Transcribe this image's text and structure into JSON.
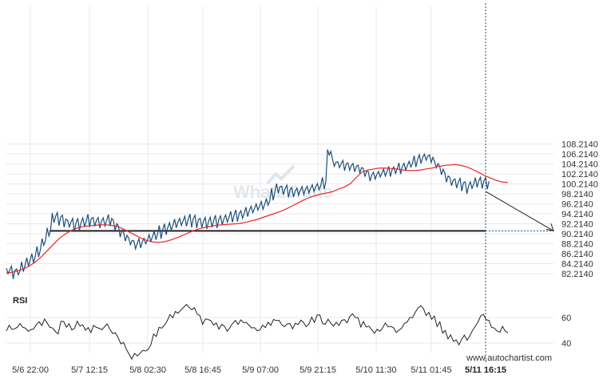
{
  "chart_data": [
    {
      "type": "line",
      "panel": "price",
      "y_ticks": [
        "108.2140",
        "106.2140",
        "104.2140",
        "102.2140",
        "100.2140",
        "98.2140",
        "96.2140",
        "94.2140",
        "92.2140",
        "90.2140",
        "88.2140",
        "86.2140",
        "84.2140",
        "82.2140"
      ],
      "ylim": [
        81.2,
        108.5
      ],
      "x_ticks": [
        "5/6 22:00",
        "5/7 12:15",
        "5/8 02:30",
        "5/8 16:45",
        "5/9 07:00",
        "5/9 21:15",
        "5/10 11:30",
        "5/11 01:45",
        "5/11 16:15"
      ],
      "series": [
        {
          "type": "price",
          "values": [
            82.7,
            82.3,
            82.5,
            83.5,
            84.5,
            85.2,
            86.5,
            88.5,
            90.5,
            93.3,
            93.0,
            92.6,
            92.2,
            91.8,
            92.0,
            92.4,
            92.7,
            92.5,
            92.3,
            92.5,
            92.8,
            91.8,
            90.5,
            89.5,
            88.6,
            87.9,
            88.2,
            88.7,
            89.3,
            89.8,
            90.4,
            91.0,
            91.6,
            92.2,
            92.5,
            92.6,
            92.7,
            92.5,
            92.3,
            92.2,
            92.4,
            92.5,
            92.8,
            93.2,
            93.5,
            93.7,
            94.0,
            94.5,
            95.0,
            95.5,
            95.8,
            96.5,
            98.0,
            99.2,
            98.8,
            98.6,
            98.4,
            98.6,
            98.8,
            99.0,
            99.3,
            99.6,
            100.2,
            106.5,
            104.3,
            104.0,
            103.8,
            103.6,
            103.4,
            103.1,
            102.4,
            101.6,
            101.8,
            102.1,
            102.4,
            102.6,
            102.9,
            103.2,
            103.6,
            104.1,
            104.6,
            105.1,
            105.5,
            105.2,
            104.0,
            102.8,
            101.4,
            100.6,
            100.2,
            99.9,
            99.3,
            99.9,
            100.4,
            100.3,
            100.2
          ]
        },
        {
          "type": "moving-average",
          "color": "#e8262b",
          "values": [
            82.3,
            82.5,
            82.8,
            83.2,
            83.8,
            84.6,
            85.6,
            86.8,
            88.0,
            89.2,
            90.1,
            90.8,
            91.3,
            91.6,
            91.8,
            91.9,
            92.0,
            92.0,
            91.9,
            91.7,
            91.2,
            90.6,
            90.0,
            89.4,
            88.9,
            88.6,
            88.5,
            88.6,
            88.9,
            89.3,
            89.8,
            90.3,
            90.8,
            91.2,
            91.5,
            91.7,
            91.9,
            92.0,
            92.1,
            92.2,
            92.3,
            92.5,
            92.8,
            93.1,
            93.5,
            93.9,
            94.3,
            94.7,
            95.2,
            95.8,
            96.4,
            97.0,
            97.5,
            97.9,
            98.2,
            98.4,
            98.7,
            99.2,
            99.6,
            100.3,
            101.5,
            102.6,
            103.0,
            103.2,
            103.4,
            103.4,
            103.3,
            103.2,
            103.0,
            102.9,
            102.9,
            103.0,
            103.2,
            103.4,
            103.7,
            103.9,
            104.0,
            104.1,
            103.9,
            103.6,
            103.1,
            102.5,
            101.9,
            101.4,
            100.9,
            100.6,
            100.5
          ]
        }
      ],
      "support_level": 90.8,
      "forecast_target": 90.8
    },
    {
      "type": "line",
      "panel": "rsi",
      "title": "RSI",
      "y_ticks": [
        "60",
        "40"
      ],
      "ylim": [
        27,
        75
      ],
      "series": [
        {
          "type": "rsi",
          "values": [
            52,
            51,
            54,
            52,
            50,
            53,
            55,
            57,
            52,
            48,
            57,
            54,
            51,
            55,
            52,
            50,
            53,
            51,
            54,
            49,
            46,
            40,
            33,
            30,
            31,
            34,
            37,
            46,
            52,
            56,
            61,
            64,
            67,
            69,
            67,
            62,
            57,
            58,
            55,
            53,
            51,
            54,
            56,
            57,
            55,
            52,
            50,
            53,
            55,
            58,
            56,
            54,
            53,
            55,
            57,
            54,
            58,
            62,
            55,
            57,
            55,
            56,
            57,
            62,
            60,
            55,
            53,
            49,
            50,
            54,
            53,
            50,
            51,
            56,
            60,
            66,
            68,
            63,
            60,
            55,
            49,
            45,
            42,
            41,
            44,
            48,
            55,
            62,
            58,
            52,
            49,
            51,
            50
          ]
        }
      ]
    }
  ],
  "watermark": {
    "text_a": "What",
    "text_b": "2",
    "text_c": "Trade"
  },
  "footer": {
    "credit": "www.autochartist.com"
  },
  "colors": {
    "price": "#1c4f79",
    "ma": "#e8262b",
    "support": "#222222",
    "rsi": "#222222",
    "grid": "#e8e8e8"
  }
}
